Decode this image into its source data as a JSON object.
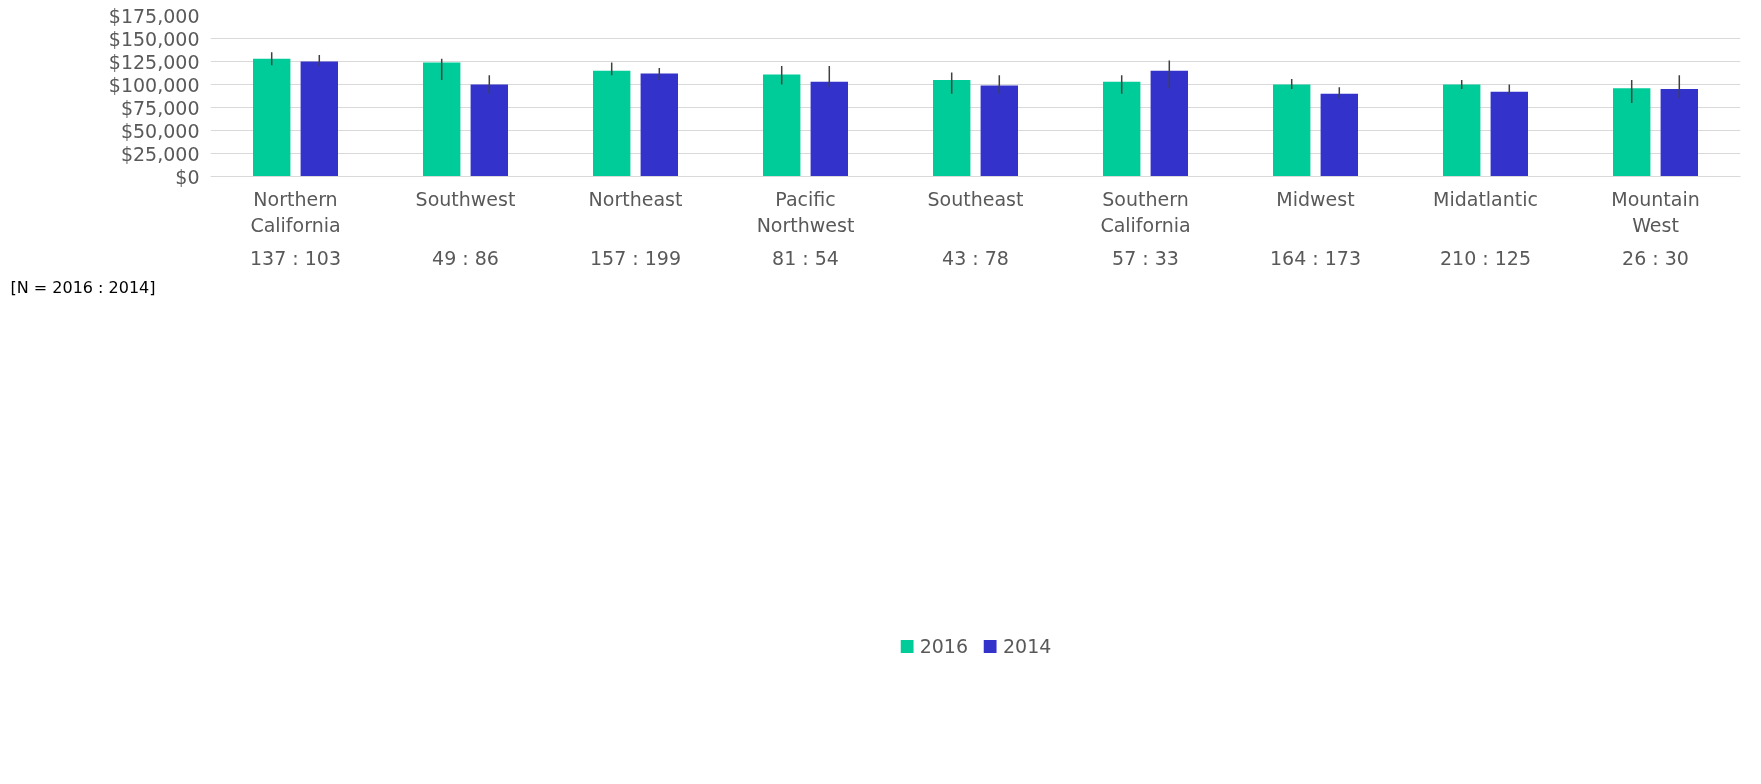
{
  "chart_data": {
    "type": "bar",
    "categories": [
      "Northern California",
      "Southwest",
      "Northeast",
      "Pacific Northwest",
      "Southeast",
      "Southern California",
      "Midwest",
      "Midatlantic",
      "Mountain West"
    ],
    "series": [
      {
        "name": "2016",
        "color": "#00cc99",
        "values": [
          128000,
          124000,
          115000,
          111000,
          105000,
          103000,
          100000,
          100000,
          96000
        ],
        "errors": [
          [
            121000,
            135000
          ],
          [
            105000,
            128000
          ],
          [
            110000,
            124000
          ],
          [
            100000,
            120000
          ],
          [
            90000,
            113000
          ],
          [
            90000,
            110000
          ],
          [
            95000,
            106000
          ],
          [
            95000,
            105000
          ],
          [
            80000,
            105000
          ]
        ]
      },
      {
        "name": "2014",
        "color": "#3333cc",
        "values": [
          125000,
          100000,
          112000,
          103000,
          99000,
          115000,
          90000,
          92000,
          95000
        ],
        "errors": [
          [
            120000,
            132000
          ],
          [
            90000,
            110000
          ],
          [
            105000,
            118000
          ],
          [
            97000,
            120000
          ],
          [
            90000,
            110000
          ],
          [
            96000,
            126000
          ],
          [
            85000,
            97000
          ],
          [
            89000,
            100000
          ],
          [
            85000,
            110000
          ]
        ]
      }
    ],
    "ylim": [
      0,
      175000
    ],
    "yticks": [
      {
        "value": 0,
        "label": "$0"
      },
      {
        "value": 25000,
        "label": "$25,000"
      },
      {
        "value": 50000,
        "label": "$50,000"
      },
      {
        "value": 75000,
        "label": "$75,000"
      },
      {
        "value": 100000,
        "label": "$100,000"
      },
      {
        "value": 125000,
        "label": "$125,000"
      },
      {
        "value": 150000,
        "label": "$150,000"
      },
      {
        "value": 175000,
        "label": "$175,000"
      }
    ],
    "annotations": [
      "[N = 2016 : 2014]",
      "137 : 103",
      "49 : 86",
      "157 : 199",
      "81 : 54",
      "43 : 78",
      "57 : 33",
      "164 : 173",
      "210 : 125",
      "26 : 30"
    ],
    "grid": "y",
    "legend": "bottom"
  }
}
